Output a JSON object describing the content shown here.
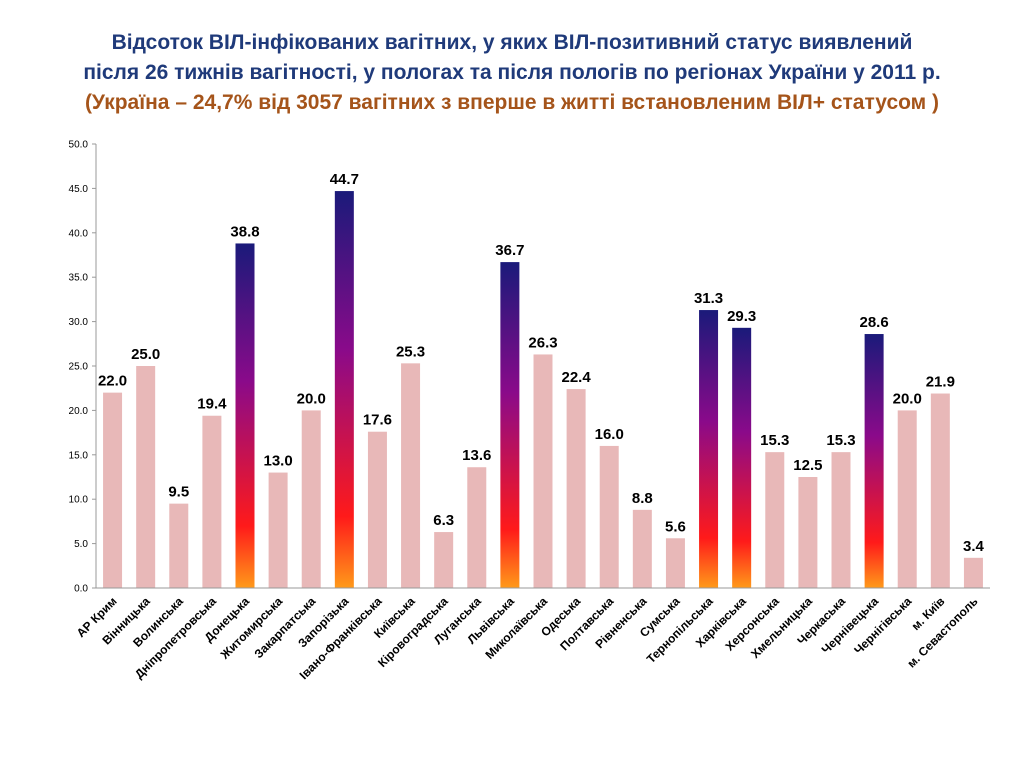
{
  "title": {
    "line1": "Відсоток ВІЛ-інфікованих вагітних, у яких ВІЛ-позитивний статус виявлений",
    "line2": "після 26 тижнів вагітності, у пологах та після пологів по регіонах України у 2011 р.",
    "line3": "(Україна – 24,7% від 3057 вагітних з вперше в житті встановленим ВІЛ+ статусом )"
  },
  "colors": {
    "title": "#1F3A7A",
    "subtitle": "#A5541A",
    "bar_normal": "#E8B8B8",
    "bar_highlight_top": "#1A1A7A",
    "bar_highlight_mid": "#8A0A8A",
    "bar_highlight_low": "#FF1A1A",
    "bar_highlight_bottom": "#FF9A1A"
  },
  "chart_data": {
    "type": "bar",
    "title": "Відсоток ВІЛ-інфікованих вагітних, у яких ВІЛ-позитивний статус виявлений після 26 тижнів вагітності, у пологах та після пологів по регіонах України у 2011 р.",
    "xlabel": "",
    "ylabel": "",
    "ylim": [
      0,
      50
    ],
    "yticks": [
      "0.0",
      "5.0",
      "10.0",
      "15.0",
      "20.0",
      "25.0",
      "30.0",
      "35.0",
      "40.0",
      "45.0",
      "50.0"
    ],
    "grid": false,
    "categories": [
      "АР Крим",
      "Вінницька",
      "Волинська",
      "Дніпропетровська",
      "Донецька",
      "Житомирська",
      "Закарпатська",
      "Запорізька",
      "Івано-Франківська",
      "Київська",
      "Кіровоградська",
      "Луганська",
      "Львівська",
      "Миколаївська",
      "Одеська",
      "Полтавська",
      "Рівненська",
      "Сумська",
      "Тернопільська",
      "Харківська",
      "Херсонська",
      "Хмельницька",
      "Черкаська",
      "Чернівецька",
      "Чернігівська",
      "м. Київ",
      "м. Севастополь"
    ],
    "values": [
      22.0,
      25.0,
      9.5,
      19.4,
      38.8,
      13.0,
      20.0,
      44.7,
      17.6,
      25.3,
      6.3,
      13.6,
      36.7,
      26.3,
      22.4,
      16.0,
      8.8,
      5.6,
      31.3,
      29.3,
      15.3,
      12.5,
      15.3,
      28.6,
      20.0,
      21.9,
      3.4
    ],
    "value_labels": [
      "22.0",
      "25.0",
      "9.5",
      "19.4",
      "38.8",
      "13.0",
      "20.0",
      "44.7",
      "17.6",
      "25.3",
      "6.3",
      "13.6",
      "36.7",
      "26.3",
      "22.4",
      "16.0",
      "8.8",
      "5.6",
      "31.3",
      "29.3",
      "15.3",
      "12.5",
      "15.3",
      "28.6",
      "20.0",
      "21.9",
      "3.4"
    ],
    "highlighted": [
      "Донецька",
      "Запорізька",
      "Львівська",
      "Тернопільська",
      "Харківська",
      "Чернівецька"
    ]
  }
}
